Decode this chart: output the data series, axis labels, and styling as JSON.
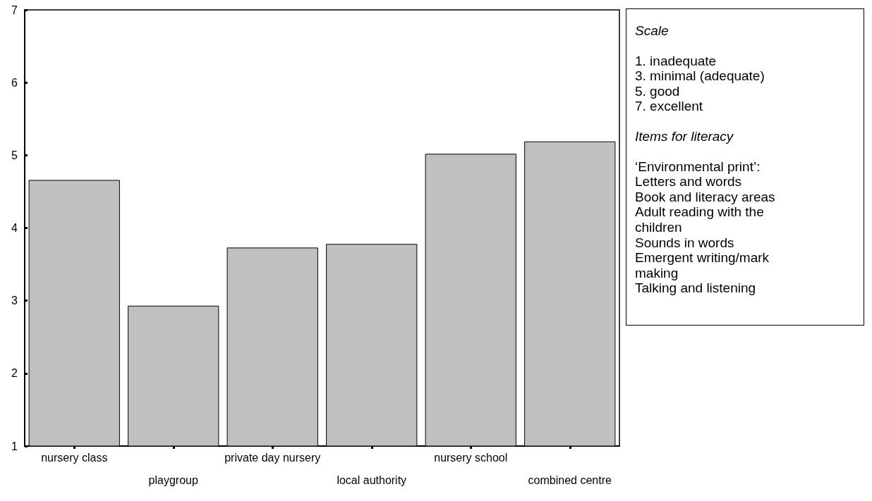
{
  "chart_data": {
    "type": "bar",
    "categories": [
      "nursery class",
      "playgroup",
      "private day nursery",
      "local authority",
      "nursery school",
      "combined centre"
    ],
    "values": [
      4.66,
      2.93,
      3.73,
      3.78,
      5.02,
      5.19
    ],
    "color": "#c0c0c0",
    "ylim": [
      1,
      7
    ],
    "yticks": [
      1,
      2,
      3,
      4,
      5,
      6,
      7
    ],
    "grid": false,
    "annotations": [
      "Scale",
      "1.  inadequate\n3.  minimal (adequate)\n5.  good\n7.  excellent",
      "Items for literacy",
      "‘Environmental print’:\nLetters and words\nBook and literacy areas\nAdult reading with the\nchildren\nSounds in words\nEmergent writing/mark\nmaking\nTalking and listening"
    ]
  }
}
